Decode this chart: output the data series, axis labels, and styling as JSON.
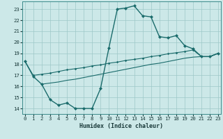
{
  "xlabel": "Humidex (Indice chaleur)",
  "background_color": "#cce8e8",
  "grid_color": "#9dc8c8",
  "line_color": "#1a6b6b",
  "xlim": [
    -0.3,
    23.3
  ],
  "ylim": [
    13.5,
    23.7
  ],
  "xticks": [
    0,
    1,
    2,
    3,
    4,
    5,
    6,
    7,
    8,
    9,
    10,
    11,
    12,
    13,
    14,
    15,
    16,
    17,
    18,
    19,
    20,
    21,
    22,
    23
  ],
  "yticks": [
    14,
    15,
    16,
    17,
    18,
    19,
    20,
    21,
    22,
    23
  ],
  "s1_x": [
    0,
    1,
    2,
    3,
    4,
    5,
    6,
    7,
    8,
    9,
    10,
    11,
    12,
    13,
    14,
    15,
    16,
    17,
    18,
    19,
    20,
    21,
    22,
    23
  ],
  "s1_y": [
    18.3,
    16.9,
    16.2,
    14.8,
    14.3,
    14.5,
    14.0,
    14.0,
    14.0,
    15.8,
    19.5,
    23.0,
    23.1,
    23.3,
    22.4,
    22.3,
    20.5,
    20.4,
    20.6,
    19.7,
    19.4,
    18.7,
    18.7,
    19.0
  ],
  "s2_x": [
    0,
    1,
    2,
    3,
    4,
    5,
    6,
    7,
    8,
    9,
    10,
    11,
    12,
    13,
    14,
    15,
    16,
    17,
    18,
    19,
    20,
    21,
    22,
    23
  ],
  "s2_y": [
    18.3,
    17.0,
    17.1,
    17.2,
    17.35,
    17.5,
    17.6,
    17.7,
    17.85,
    17.95,
    18.1,
    18.2,
    18.35,
    18.45,
    18.55,
    18.7,
    18.8,
    18.95,
    19.05,
    19.15,
    19.3,
    18.7,
    18.7,
    19.0
  ],
  "s3_x": [
    2,
    3,
    4,
    5,
    6,
    7,
    8,
    9,
    10,
    11,
    12,
    13,
    14,
    15,
    16,
    17,
    18,
    19,
    20,
    21,
    22,
    23
  ],
  "s3_y": [
    16.2,
    16.3,
    16.4,
    16.55,
    16.65,
    16.8,
    16.95,
    17.1,
    17.25,
    17.4,
    17.55,
    17.7,
    17.85,
    18.0,
    18.1,
    18.25,
    18.4,
    18.55,
    18.65,
    18.7,
    18.7,
    19.0
  ]
}
